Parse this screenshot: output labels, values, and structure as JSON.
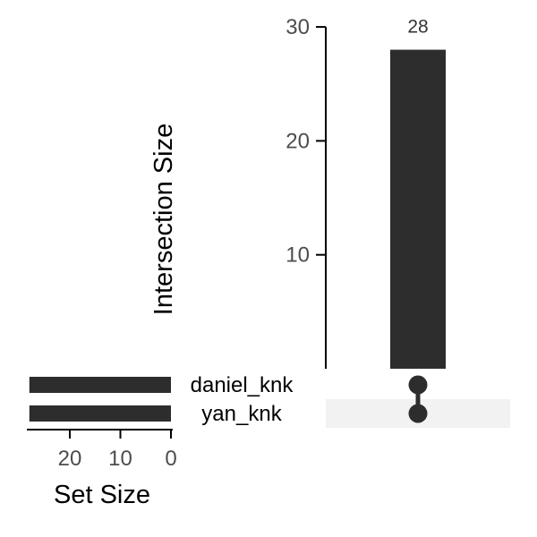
{
  "chart_data": {
    "type": "upset",
    "intersection_axis": {
      "label": "Intersection Size",
      "ticks": [
        10,
        20,
        30
      ],
      "range": [
        0,
        30
      ]
    },
    "set_size_axis": {
      "label": "Set Size",
      "ticks": [
        20,
        10,
        0
      ],
      "range": [
        0,
        28
      ]
    },
    "sets": [
      {
        "name": "daniel_knk",
        "size": 28
      },
      {
        "name": "yan_knk",
        "size": 28
      }
    ],
    "intersections": [
      {
        "members": [
          "daniel_knk",
          "yan_knk"
        ],
        "value": 28,
        "label": "28"
      }
    ],
    "colors": {
      "bar": "#2d2d2d",
      "dot": "#2d2d2d",
      "stripe": "#f2f2f2",
      "axis": "#000000"
    }
  }
}
